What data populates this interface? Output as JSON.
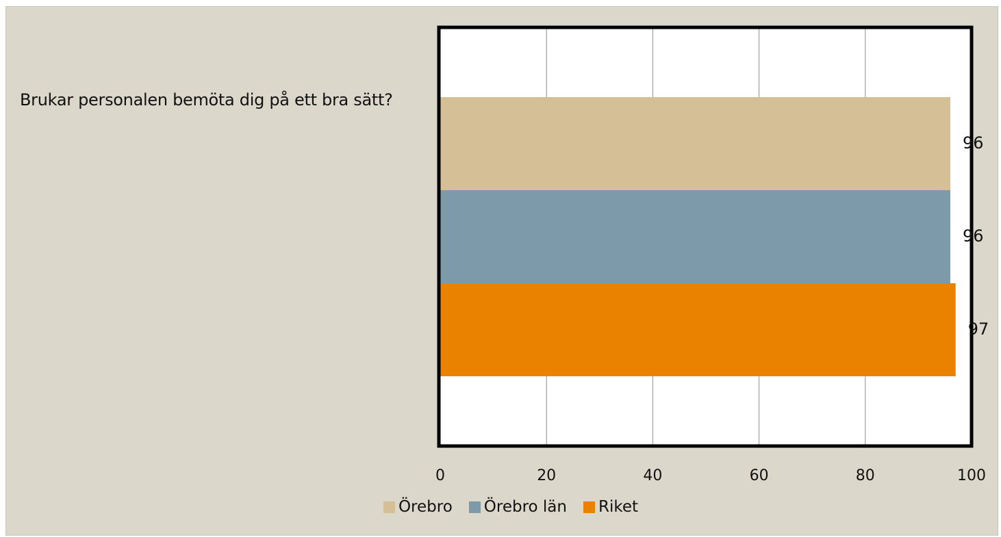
{
  "question": "Brukar personalen bemöta dig på ett bra sätt?",
  "chart_data": {
    "type": "bar",
    "orientation": "horizontal",
    "categories": [
      "Brukar personalen bemöta dig på ett bra sätt?"
    ],
    "series": [
      {
        "name": "Örebro",
        "values": [
          96
        ],
        "color": "#d4bf97"
      },
      {
        "name": "Örebro län",
        "values": [
          96
        ],
        "color": "#7d9aab"
      },
      {
        "name": "Riket",
        "values": [
          97
        ],
        "color": "#ea8200"
      }
    ],
    "xlim": [
      0,
      100
    ],
    "xticks": [
      0,
      20,
      40,
      60,
      80,
      100
    ],
    "tick_labels": [
      "0",
      "20",
      "40",
      "60",
      "80",
      "100"
    ],
    "data_labels": [
      "96",
      "96",
      "97"
    ],
    "grid": true,
    "legend_position": "bottom"
  }
}
